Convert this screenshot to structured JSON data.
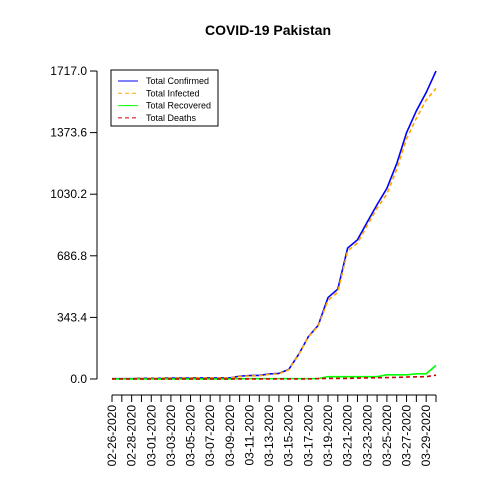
{
  "chart_data": {
    "type": "line",
    "title": "COVID-19 Pakistan",
    "categories": [
      "02-26-2020",
      null,
      "02-28-2020",
      null,
      "03-01-2020",
      null,
      "03-03-2020",
      null,
      "03-05-2020",
      null,
      "03-07-2020",
      null,
      "03-09-2020",
      null,
      "03-11-2020",
      null,
      "03-13-2020",
      null,
      "03-15-2020",
      null,
      "03-17-2020",
      null,
      "03-19-2020",
      null,
      "03-21-2020",
      null,
      "03-23-2020",
      null,
      "03-25-2020",
      null,
      "03-27-2020",
      null,
      "03-29-2020",
      null
    ],
    "series": [
      {
        "name": "Total Confirmed",
        "color": "#0000ff",
        "dash": "solid",
        "values": [
          2,
          2,
          2,
          4,
          4,
          4,
          5,
          5,
          5,
          6,
          6,
          6,
          6,
          16,
          19,
          20,
          28,
          31,
          53,
          136,
          236,
          299,
          454,
          501,
          730,
          776,
          875,
          972,
          1063,
          1201,
          1373,
          1495,
          1597,
          1717
        ]
      },
      {
        "name": "Total Infected",
        "color": "#ffa500",
        "dash": "dashed",
        "values": [
          2,
          2,
          2,
          4,
          4,
          4,
          5,
          5,
          5,
          6,
          6,
          6,
          6,
          14,
          17,
          18,
          26,
          29,
          51,
          134,
          234,
          295,
          438,
          485,
          714,
          758,
          856,
          952,
          1032,
          1169,
          1339,
          1454,
          1555,
          1620
        ]
      },
      {
        "name": "Total Recovered",
        "color": "#00ff00",
        "dash": "solid",
        "values": [
          0,
          0,
          0,
          0,
          0,
          0,
          0,
          0,
          0,
          0,
          0,
          0,
          0,
          2,
          2,
          2,
          2,
          2,
          2,
          2,
          2,
          2,
          13,
          13,
          13,
          13,
          13,
          13,
          23,
          23,
          23,
          29,
          29,
          76
        ]
      },
      {
        "name": "Total Deaths",
        "color": "#cc0000",
        "dash": "dashed",
        "values": [
          0,
          0,
          0,
          0,
          0,
          0,
          0,
          0,
          0,
          0,
          0,
          0,
          0,
          0,
          0,
          0,
          0,
          0,
          0,
          0,
          0,
          2,
          3,
          3,
          3,
          5,
          6,
          7,
          8,
          9,
          11,
          12,
          13,
          21
        ]
      }
    ],
    "ylim": [
      -68.68,
      1785.68
    ],
    "yticks": [
      {
        "value": 0,
        "label": "0.0"
      },
      343.4,
      686.8,
      1030.2,
      1373.6,
      {
        "value": 1717,
        "label": "1717.0"
      }
    ],
    "legend": "top-left"
  }
}
